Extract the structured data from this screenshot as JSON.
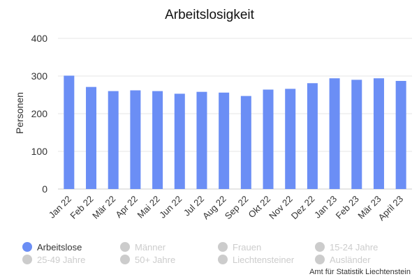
{
  "chart_data": {
    "type": "bar",
    "title": "Arbeitslosigkeit",
    "xlabel": "",
    "ylabel": "Personen",
    "ylim": [
      0,
      400
    ],
    "yticks": [
      0,
      100,
      200,
      300,
      400
    ],
    "grid": true,
    "categories": [
      "Jan 22",
      "Feb 22",
      "Mär 22",
      "Apr 22",
      "Mai 22",
      "Jun 22",
      "Jul 22",
      "Aug 22",
      "Sep 22",
      "Okt 22",
      "Nov 22",
      "Dez 22",
      "Jan 23",
      "Feb 23",
      "Mär 23",
      "April 23"
    ],
    "series": [
      {
        "name": "Arbeitslose",
        "values": [
          301,
          271,
          260,
          262,
          260,
          253,
          258,
          256,
          247,
          264,
          266,
          281,
          294,
          290,
          294,
          287
        ],
        "color": "#6b8ef5"
      }
    ]
  },
  "legend": {
    "placement": "bottom",
    "items": [
      {
        "label": "Arbeitslose",
        "active": true,
        "color": "#6b8ef5"
      },
      {
        "label": "Männer",
        "active": false,
        "color": "#cccccc"
      },
      {
        "label": "Frauen",
        "active": false,
        "color": "#cccccc"
      },
      {
        "label": "15-24 Jahre",
        "active": false,
        "color": "#cccccc"
      },
      {
        "label": "25-49 Jahre",
        "active": false,
        "color": "#cccccc"
      },
      {
        "label": "50+ Jahre",
        "active": false,
        "color": "#cccccc"
      },
      {
        "label": "Liechtensteiner",
        "active": false,
        "color": "#cccccc"
      },
      {
        "label": "Ausländer",
        "active": false,
        "color": "#cccccc"
      }
    ]
  },
  "credit": "Amt für Statistik Liechtenstein",
  "colors": {
    "bar": "#6b8ef5",
    "inactive": "#cccccc",
    "grid": "#e6e6e6",
    "text": "#333333"
  }
}
